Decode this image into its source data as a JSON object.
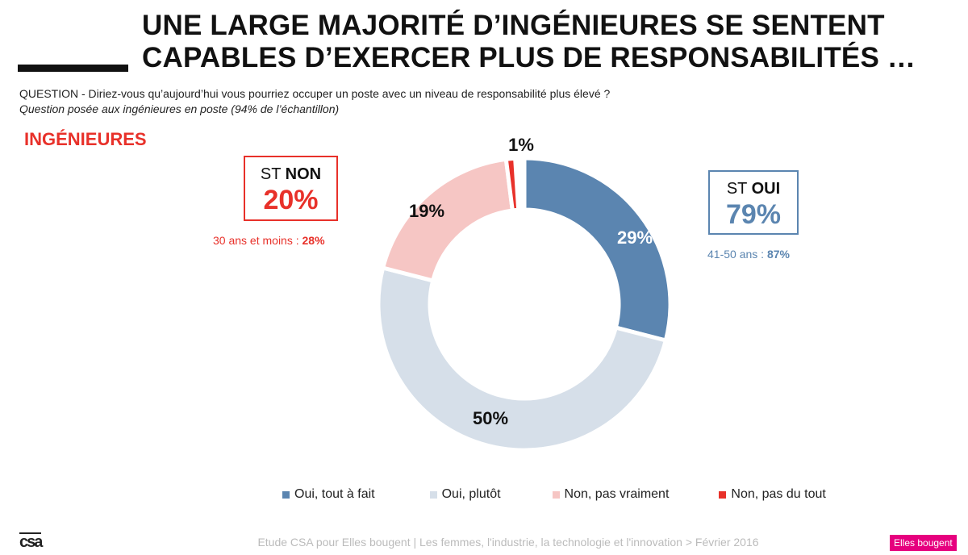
{
  "header": {
    "title_line1": "UNE LARGE MAJORITÉ D’INGÉNIEURES SE SENTENT",
    "title_line2": "CAPABLES D’EXERCER PLUS DE RESPONSABILITÉS …",
    "question": "QUESTION - Diriez-vous qu’aujourd’hui vous pourriez occuper un poste avec un niveau de responsabilité plus élevé ?",
    "note": "Question posée aux ingénieures en poste (94% de l’échantillon)",
    "group": "INGÉNIEURES"
  },
  "summary": {
    "non_st": "ST ",
    "non_word": "NON",
    "non_value": "20%",
    "non_sub": "30 ans et moins : ",
    "non_sub_val": "28%",
    "oui_st": "ST ",
    "oui_word": "OUI",
    "oui_value": "79%",
    "oui_sub": "41-50 ans : ",
    "oui_sub_val": "87%"
  },
  "chart_data": {
    "type": "pie",
    "variant": "donut",
    "categories": [
      "Oui, tout à fait",
      "Oui, plutôt",
      "Non, pas vraiment",
      "Non, pas du tout"
    ],
    "values": [
      29,
      50,
      19,
      1
    ],
    "labels": [
      "29%",
      "50%",
      "19%",
      "1%"
    ],
    "colors": [
      "#5b85b0",
      "#d6dfe9",
      "#f6c6c4",
      "#e8312a"
    ],
    "label_colors": [
      "#ffffff",
      "#111111",
      "#111111",
      "#111111"
    ],
    "legend": "bottom"
  },
  "footer": {
    "text": "Etude CSA pour Elles bougent | Les femmes, l'industrie, la technologie et l'innovation > Février 2016",
    "logo_left": "csa",
    "logo_right": "Elles bougent"
  }
}
